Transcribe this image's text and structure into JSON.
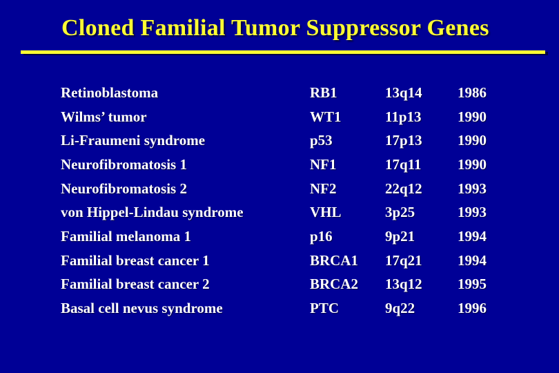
{
  "title": "Cloned Familial Tumor Suppressor Genes",
  "colors": {
    "bg": "#000096",
    "accent": "#FFFF33",
    "text": "#FFFFFF"
  },
  "table": {
    "rows": [
      {
        "disease": "Retinoblastoma",
        "gene": "RB1",
        "locus": "13q14",
        "year": "1986"
      },
      {
        "disease": "Wilms’ tumor",
        "gene": "WT1",
        "locus": "11p13",
        "year": "1990"
      },
      {
        "disease": "Li-Fraumeni syndrome",
        "gene": "p53",
        "locus": "17p13",
        "year": "1990"
      },
      {
        "disease": "Neurofibromatosis 1",
        "gene": "NF1",
        "locus": "17q11",
        "year": "1990"
      },
      {
        "disease": "Neurofibromatosis 2",
        "gene": "NF2",
        "locus": "22q12",
        "year": "1993"
      },
      {
        "disease": "von Hippel-Lindau syndrome",
        "gene": "VHL",
        "locus": "3p25",
        "year": "1993"
      },
      {
        "disease": "Familial melanoma 1",
        "gene": "p16",
        "locus": "9p21",
        "year": "1994"
      },
      {
        "disease": "Familial breast cancer 1",
        "gene": "BRCA1",
        "locus": "17q21",
        "year": "1994"
      },
      {
        "disease": "Familial breast cancer 2",
        "gene": "BRCA2",
        "locus": "13q12",
        "year": "1995"
      },
      {
        "disease": "Basal cell nevus syndrome",
        "gene": "PTC",
        "locus": "9q22",
        "year": "1996"
      }
    ]
  }
}
